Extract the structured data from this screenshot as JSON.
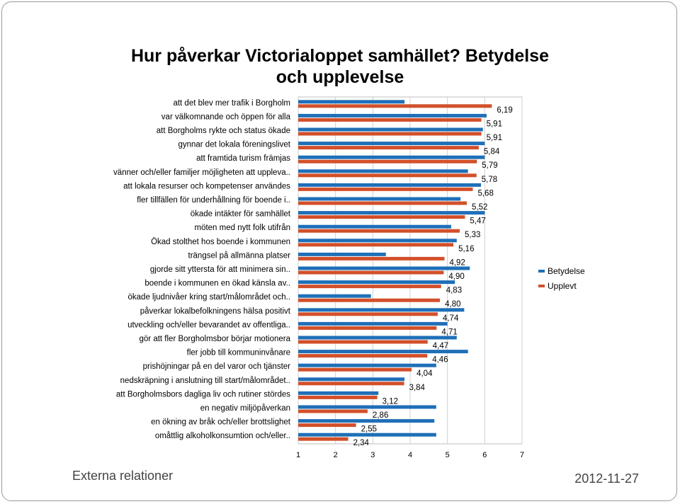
{
  "slide": {
    "footer_left": "Externa relationer",
    "footer_right": "2012-11-27"
  },
  "chart_data": {
    "type": "bar",
    "orientation": "horizontal",
    "title_line1": "Hur påverkar Victorialoppet samhället? Betydelse",
    "title_line2": "och upplevelse",
    "categories": [
      "att det blev mer trafik i Borgholm",
      "var välkomnande och öppen för alla",
      "att Borgholms rykte och status ökade",
      "gynnar det lokala föreningslivet",
      "att framtida turism främjas",
      "vänner och/eller familjer möjligheten att uppleva..",
      "att lokala resurser och kompetenser användes",
      "fler tillfällen för underhållning för boende i..",
      "ökade intäkter för samhället",
      "möten med nytt folk utifrån",
      "Ökad stolthet hos boende i kommunen",
      "trängsel på allmänna platser",
      "gjorde sitt yttersta för att minimera sin..",
      "boende i kommunen en ökad känsla av..",
      "ökade ljudnivåer kring start/målområdet och..",
      "påverkar lokalbefolkningens hälsa positivt",
      "utveckling och/eller bevarandet av offentliga..",
      "gör att fler Borgholmsbor börjar motionera",
      "fler jobb till kommuninvånare",
      "prishöjningar på en del varor och tjänster",
      "nedskräpning i anslutning till start/målområdet..",
      "att Borgholmsbors dagliga liv och rutiner stördes",
      "en negativ miljöpåverkan",
      "en ökning av bråk och/eller brottslighet",
      "omåttlig alkoholkonsumtion och/eller.."
    ],
    "series": [
      {
        "name": "Betydelse",
        "color": "#1f6fb8",
        "values": [
          3.85,
          6.05,
          5.95,
          6.0,
          6.0,
          5.55,
          5.9,
          5.35,
          6.0,
          5.1,
          5.25,
          3.35,
          5.6,
          5.2,
          2.95,
          5.45,
          5.0,
          5.25,
          5.55,
          4.7,
          3.85,
          3.15,
          4.7,
          4.65,
          4.7
        ]
      },
      {
        "name": "Upplevt",
        "color": "#d2502a",
        "values": [
          6.19,
          5.91,
          5.91,
          5.84,
          5.79,
          5.78,
          5.68,
          5.52,
          5.47,
          5.33,
          5.16,
          4.92,
          4.9,
          4.83,
          4.8,
          4.74,
          4.71,
          4.47,
          4.46,
          4.04,
          3.84,
          3.12,
          2.86,
          2.55,
          2.34
        ],
        "labels": [
          "6,19",
          "5,91",
          "5,91",
          "5,84",
          "5,79",
          "5,78",
          "5,68",
          "5,52",
          "5,47",
          "5,33",
          "5,16",
          "4,92",
          "4,90",
          "4,83",
          "4,80",
          "4,74",
          "4,71",
          "4,47",
          "4,46",
          "4,04",
          "3,84",
          "3,12",
          "2,86",
          "2,55",
          "2,34"
        ]
      }
    ],
    "x_ticks": [
      "1",
      "2",
      "3",
      "4",
      "5",
      "6",
      "7"
    ],
    "xlim": [
      1,
      7
    ],
    "grid": "vertical",
    "legend_position": "right"
  }
}
